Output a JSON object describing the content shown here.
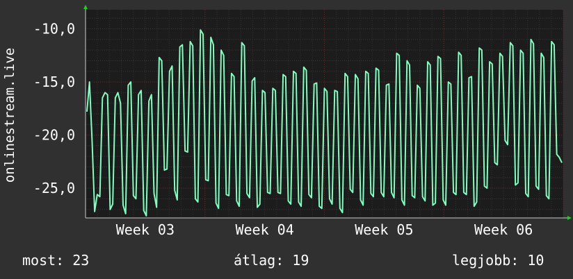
{
  "chart_data": {
    "type": "line",
    "ylabel": "onlinestream.live",
    "y_ticks": [
      "-10,0",
      "-15,0",
      "-20,0",
      "-25,0"
    ],
    "y_tick_values": [
      -10,
      -15,
      -20,
      -25
    ],
    "ylim": [
      -27.8,
      -8.2
    ],
    "x_ticks": [
      "Week 03",
      "Week 04",
      "Week 05",
      "Week 06"
    ],
    "x_tick_positions": [
      0.125,
      0.375,
      0.625,
      0.875
    ],
    "grid": true,
    "background": "#1c1c1c",
    "series": [
      {
        "color": "#7fffbf",
        "values": [
          -17.8,
          -15.0,
          -20.5,
          -27.2,
          -25.6,
          -25.8,
          -16.5,
          -16.0,
          -16.2,
          -27.0,
          -26.5,
          -16.5,
          -16.0,
          -17.0,
          -26.6,
          -27.4,
          -15.3,
          -15.0,
          -25.7,
          -26.0,
          -16.2,
          -15.8,
          -27.1,
          -27.6,
          -16.8,
          -16.2,
          -25.5,
          -26.8,
          -12.7,
          -13.0,
          -23.3,
          -23.2,
          -14.0,
          -13.5,
          -25.2,
          -26.1,
          -11.7,
          -11.5,
          -21.5,
          -21.6,
          -11.2,
          -11.6,
          -26.0,
          -26.3,
          -10.1,
          -10.5,
          -24.2,
          -24.3,
          -10.8,
          -11.5,
          -26.4,
          -26.9,
          -12.0,
          -12.5,
          -25.6,
          -25.7,
          -14.2,
          -14.5,
          -26.2,
          -26.7,
          -11.3,
          -11.6,
          -25.5,
          -25.9,
          -14.9,
          -14.6,
          -26.8,
          -26.5,
          -15.8,
          -16.0,
          -25.4,
          -25.5,
          -15.6,
          -15.8,
          -25.4,
          -25.5,
          -14.3,
          -14.5,
          -26.2,
          -26.5,
          -14.0,
          -14.2,
          -26.3,
          -26.7,
          -13.6,
          -13.9,
          -25.6,
          -25.9,
          -15.2,
          -15.1,
          -26.7,
          -26.9,
          -15.6,
          -15.9,
          -26.0,
          -26.5,
          -15.8,
          -15.9,
          -26.9,
          -27.3,
          -14.2,
          -14.5,
          -25.1,
          -25.4,
          -14.3,
          -14.7,
          -26.1,
          -26.6,
          -14.0,
          -14.2,
          -25.5,
          -25.8,
          -13.7,
          -13.9,
          -25.4,
          -25.8,
          -15.3,
          -15.2,
          -25.4,
          -25.9,
          -12.3,
          -12.5,
          -26.1,
          -26.6,
          -13.0,
          -13.4,
          -25.7,
          -25.9,
          -15.3,
          -15.6,
          -25.8,
          -26.2,
          -13.1,
          -13.4,
          -26.6,
          -26.4,
          -12.6,
          -12.8,
          -26.1,
          -26.6,
          -15.0,
          -15.2,
          -25.4,
          -25.6,
          -12.2,
          -12.5,
          -25.4,
          -25.6,
          -14.6,
          -14.5,
          -26.7,
          -26.3,
          -11.8,
          -12.0,
          -24.8,
          -25.0,
          -13.1,
          -13.3,
          -22.6,
          -22.8,
          -12.3,
          -12.6,
          -20.5,
          -20.9,
          -11.3,
          -11.6,
          -24.7,
          -24.5,
          -12.0,
          -12.3,
          -25.5,
          -25.8,
          -11.0,
          -11.4,
          -24.8,
          -25.1,
          -12.3,
          -12.7,
          -25.7,
          -26.0,
          -11.2,
          -11.5,
          -21.8,
          -22.1,
          -22.6
        ]
      }
    ]
  },
  "footer": {
    "now": "most: 23",
    "avg": "átlag: 19",
    "best": "legjobb: 10"
  }
}
